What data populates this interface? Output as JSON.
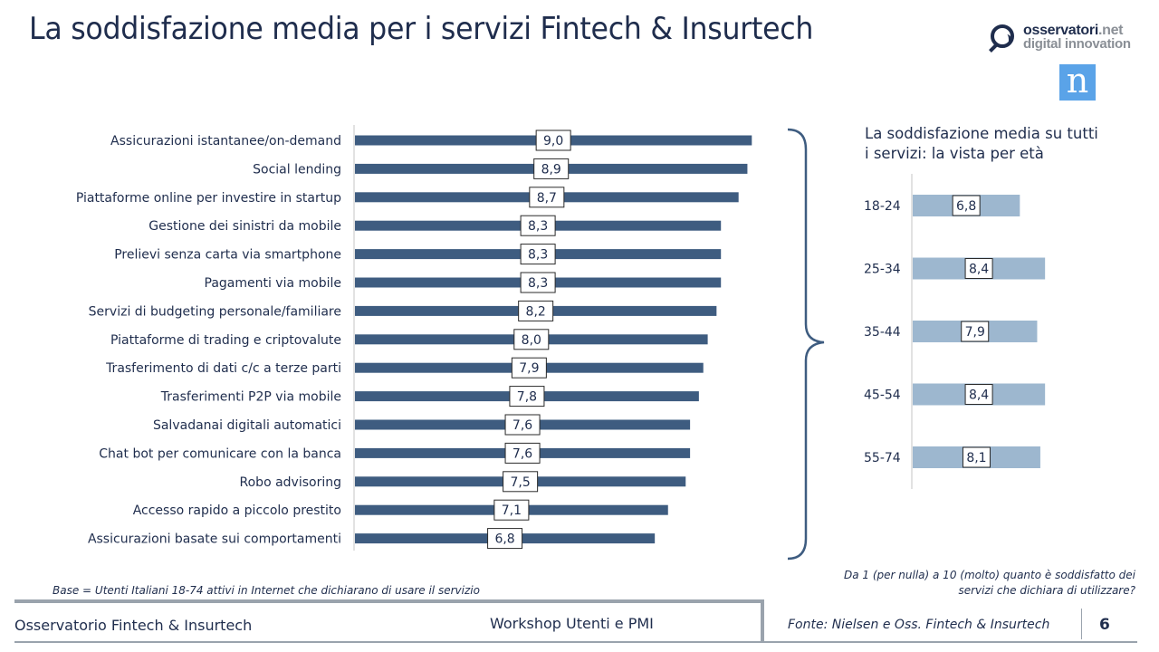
{
  "header": {
    "title": "La soddisfazione media per i servizi Fintech & Insurtech"
  },
  "logos": {
    "osservatori_line1_main": "osservatori",
    "osservatori_line1_suffix": ".net",
    "osservatori_line2": "digital innovation",
    "nielsen_letter": "n"
  },
  "colors": {
    "left_bar": "#3e5c80",
    "right_bar": "#9db7cf",
    "text": "#1f2d4d",
    "axis": "#e2e2e2"
  },
  "chart_data": [
    {
      "type": "bar",
      "orientation": "horizontal",
      "title": "",
      "xlabel": "",
      "ylabel": "",
      "xlim": [
        0,
        10
      ],
      "grid": false,
      "categories": [
        "Assicurazioni istantanee/on-demand",
        "Social lending",
        "Piattaforme online per investire in startup",
        "Gestione dei sinistri da mobile",
        "Prelievi senza carta via smartphone",
        "Pagamenti via mobile",
        "Servizi di budgeting personale/familiare",
        "Piattaforme di trading e criptovalute",
        "Trasferimento di dati c/c a terze parti",
        "Trasferimenti P2P via mobile",
        "Salvadanai digitali automatici",
        "Chat bot per comunicare con la banca",
        "Robo advisoring",
        "Accesso rapido a piccolo prestito",
        "Assicurazioni basate sui comportamenti"
      ],
      "values": [
        9.0,
        8.9,
        8.7,
        8.3,
        8.3,
        8.3,
        8.2,
        8.0,
        7.9,
        7.8,
        7.6,
        7.6,
        7.5,
        7.1,
        6.8
      ],
      "labels": [
        "9,0",
        "8,9",
        "8,7",
        "8,3",
        "8,3",
        "8,3",
        "8,2",
        "8,0",
        "7,9",
        "7,8",
        "7,6",
        "7,6",
        "7,5",
        "7,1",
        "6,8"
      ]
    },
    {
      "type": "bar",
      "orientation": "horizontal",
      "title": "La soddisfazione media su tutti i servizi: la vista per età",
      "xlabel": "",
      "ylabel": "",
      "xlim": [
        0,
        10
      ],
      "grid": false,
      "categories": [
        "18-24",
        "25-34",
        "35-44",
        "45-54",
        "55-74"
      ],
      "values": [
        6.8,
        8.4,
        7.9,
        8.4,
        8.1
      ],
      "labels": [
        "6,8",
        "8,4",
        "7,9",
        "8,4",
        "8,1"
      ]
    }
  ],
  "right_title_line1": "La soddisfazione media su tutti",
  "right_title_line2": "i servizi: la vista per età",
  "notes": {
    "base": "Base = Utenti Italiani 18-74 attivi in Internet che dichiarano di usare il servizio",
    "question_line1": "Da 1 (per nulla) a 10 (molto) quanto è soddisfatto dei",
    "question_line2": "servizi che dichiara di utilizzare?"
  },
  "footer": {
    "left": "Osservatorio Fintech & Insurtech",
    "center": "Workshop Utenti e PMI",
    "source": "Fonte: Nielsen e Oss. Fintech & Insurtech",
    "page": "6"
  }
}
